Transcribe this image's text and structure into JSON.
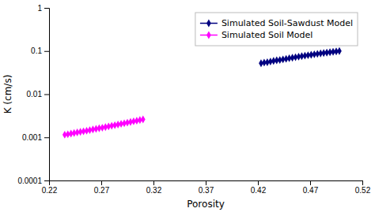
{
  "chart_data": {
    "type": "line",
    "xlabel": "Porosity",
    "ylabel": "K (cm/s)",
    "log": "y",
    "grid": false,
    "legend": "upper right",
    "xlim": [
      0.22,
      0.52
    ],
    "xticks": [
      0.22,
      0.27,
      0.32,
      0.37,
      0.42,
      0.47,
      0.52
    ],
    "ylim": [
      0.0001,
      1
    ],
    "yticks": [
      0.0001,
      0.001,
      0.01,
      0.1,
      1
    ],
    "series": [
      {
        "name": "Simulated Soil-Sawdust Model",
        "color": "#000080",
        "marker": "diamond",
        "x": [
          0.423,
          0.426,
          0.429,
          0.432,
          0.435,
          0.438,
          0.441,
          0.444,
          0.447,
          0.45,
          0.453,
          0.456,
          0.459,
          0.462,
          0.465,
          0.468,
          0.471,
          0.474,
          0.477,
          0.48,
          0.483,
          0.486,
          0.489,
          0.492,
          0.495,
          0.498
        ],
        "values": [
          0.052,
          0.054,
          0.055,
          0.057,
          0.059,
          0.061,
          0.062,
          0.064,
          0.066,
          0.068,
          0.07,
          0.072,
          0.074,
          0.076,
          0.078,
          0.08,
          0.082,
          0.084,
          0.086,
          0.088,
          0.09,
          0.092,
          0.094,
          0.096,
          0.098,
          0.1
        ]
      },
      {
        "name": "Simulated Soil Model",
        "color": "#FF00FF",
        "marker": "diamond",
        "x": [
          0.235,
          0.238,
          0.241,
          0.244,
          0.247,
          0.25,
          0.253,
          0.256,
          0.259,
          0.262,
          0.265,
          0.268,
          0.271,
          0.274,
          0.277,
          0.28,
          0.283,
          0.286,
          0.289,
          0.292,
          0.295,
          0.298,
          0.301,
          0.304,
          0.307,
          0.31
        ],
        "values": [
          0.00115,
          0.00118,
          0.00122,
          0.00126,
          0.0013,
          0.00134,
          0.00138,
          0.00142,
          0.00147,
          0.00152,
          0.00157,
          0.00162,
          0.00167,
          0.00173,
          0.00179,
          0.00185,
          0.00191,
          0.00198,
          0.00205,
          0.00212,
          0.00219,
          0.00227,
          0.00235,
          0.00243,
          0.00252,
          0.0026
        ]
      }
    ]
  }
}
